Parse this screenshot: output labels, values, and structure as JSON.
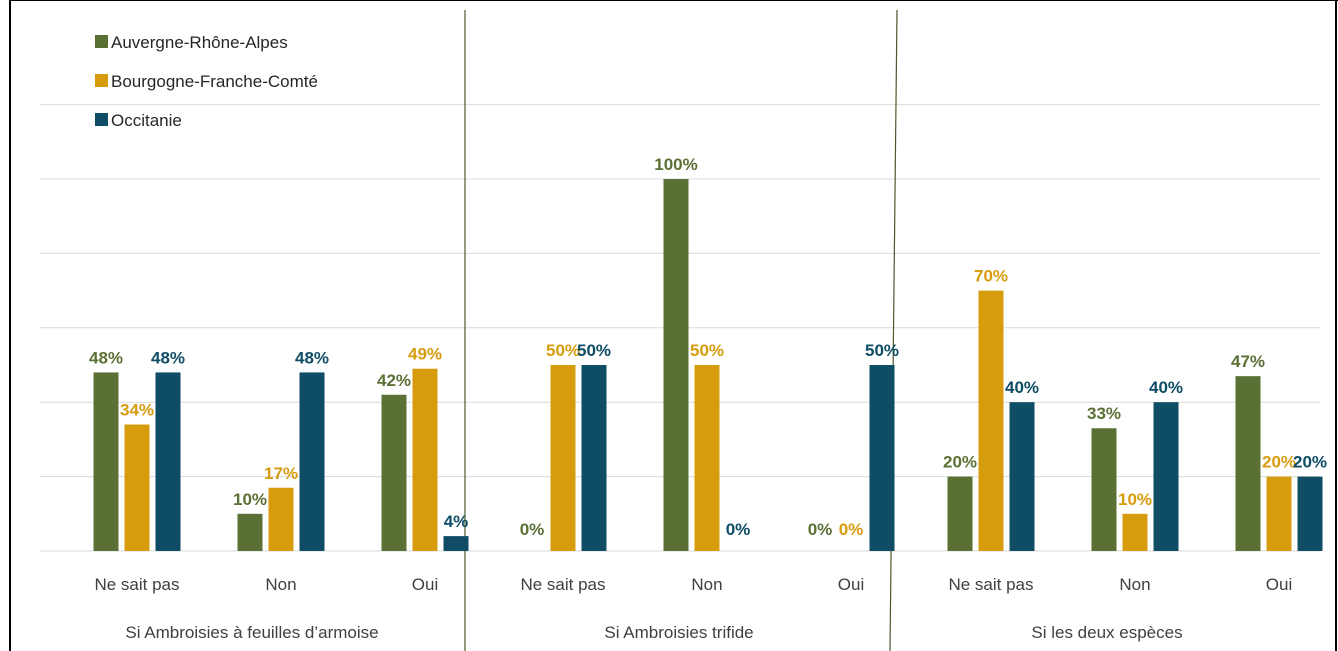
{
  "chart_data": {
    "type": "bar",
    "legend_position": "top-left",
    "grid": true,
    "ylim": [
      0,
      100
    ],
    "colors": {
      "Auvergne-Rhône-Alpes": "#5a7034",
      "Bourgogne-Franche-Comté": "#d79c0e",
      "Occitanie": "#0f4c66"
    },
    "legend": [
      "Auvergne-Rhône-Alpes",
      "Bourgogne-Franche-Comté",
      "Occitanie"
    ],
    "groups": [
      {
        "label": "Si Ambroisies à feuilles d’armoise",
        "categories": [
          "Ne sait pas",
          "Non",
          "Oui"
        ],
        "series": [
          {
            "name": "Auvergne-Rhône-Alpes",
            "values": [
              48,
              10,
              42
            ],
            "labels": [
              "48%",
              "10%",
              "42%"
            ]
          },
          {
            "name": "Bourgogne-Franche-Comté",
            "values": [
              34,
              17,
              49
            ],
            "labels": [
              "34%",
              "17%",
              "49%"
            ]
          },
          {
            "name": "Occitanie",
            "values": [
              48,
              48,
              4
            ],
            "labels": [
              "48%",
              "48%",
              "4%"
            ]
          }
        ]
      },
      {
        "label": "Si Ambroisies trifide",
        "categories": [
          "Ne sait pas",
          "Non",
          "Oui"
        ],
        "series": [
          {
            "name": "Auvergne-Rhône-Alpes",
            "values": [
              0,
              100,
              0
            ],
            "labels": [
              "0%",
              "100%",
              "0%"
            ]
          },
          {
            "name": "Bourgogne-Franche-Comté",
            "values": [
              50,
              50,
              0
            ],
            "labels": [
              "50%",
              "50%",
              "0%"
            ]
          },
          {
            "name": "Occitanie",
            "values": [
              50,
              0,
              50
            ],
            "labels": [
              "50%",
              "0%",
              "50%"
            ]
          }
        ]
      },
      {
        "label": "Si les deux espèces",
        "categories": [
          "Ne sait pas",
          "Non",
          "Oui"
        ],
        "series": [
          {
            "name": "Auvergne-Rhône-Alpes",
            "values": [
              20,
              33,
              47
            ],
            "labels": [
              "20%",
              "33%",
              "47%"
            ]
          },
          {
            "name": "Bourgogne-Franche-Comté",
            "values": [
              70,
              10,
              20
            ],
            "labels": [
              "70%",
              "10%",
              "20%"
            ]
          },
          {
            "name": "Occitanie",
            "values": [
              40,
              40,
              20
            ],
            "labels": [
              "40%",
              "40%",
              "20%"
            ]
          }
        ]
      }
    ]
  }
}
